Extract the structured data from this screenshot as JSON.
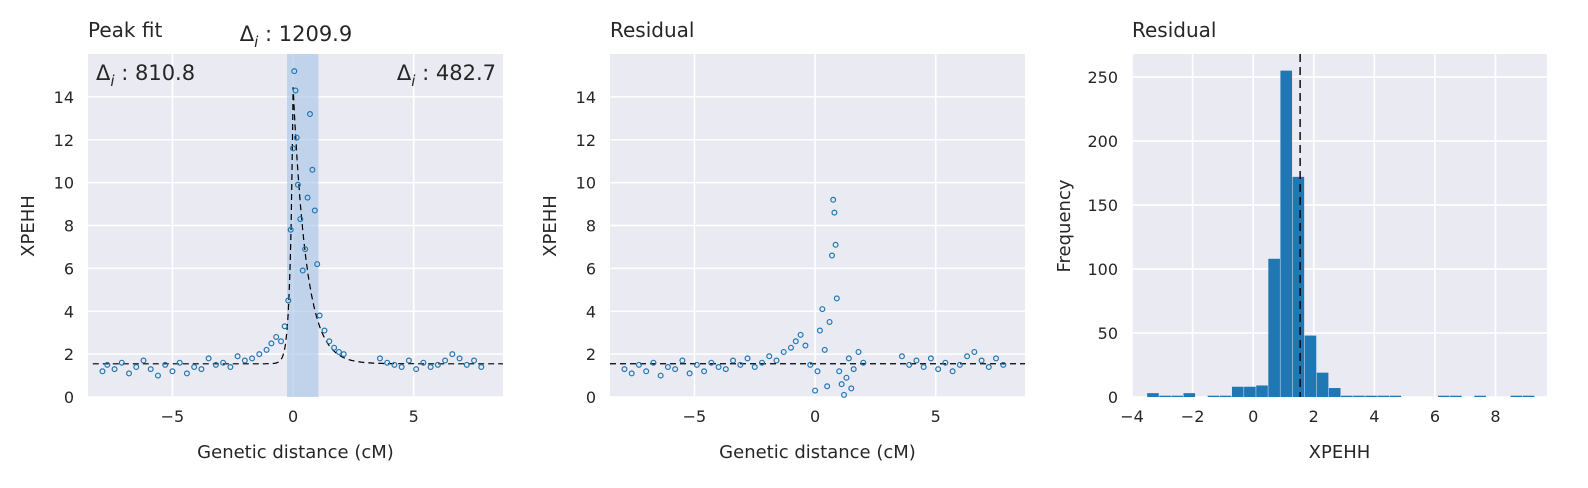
{
  "figure": {
    "colors": {
      "axes_bg": "#eaeaf2",
      "grid": "#ffffff",
      "marker": "#1f77b4",
      "fit_line": "#000000",
      "span": "#a9c6e6",
      "bar": "#1f77b4"
    }
  },
  "chart_data": [
    {
      "type": "scatter",
      "title": "Peak fit",
      "xlabel": "Genetic distance (cM)",
      "ylabel": "XPEHH",
      "xlim": [
        -8.5,
        8.7
      ],
      "ylim": [
        0,
        16
      ],
      "xticks": [
        -5,
        0,
        5
      ],
      "xtick_labels": [
        "−5",
        "0",
        "5"
      ],
      "yticks": [
        0,
        2,
        4,
        6,
        8,
        10,
        12,
        14
      ],
      "ytick_labels": [
        "0",
        "2",
        "4",
        "6",
        "8",
        "10",
        "12",
        "14"
      ],
      "grid": true,
      "fit_line": {
        "style": "dashed",
        "baseline": 1.55,
        "amplitude": 12.9,
        "center": 0.0,
        "rise_scale": 0.12,
        "decay_scale": 0.55
      },
      "span": {
        "x0": -0.25,
        "x1": 1.05
      },
      "annotations": [
        {
          "symbol": "Δ",
          "sub": "i",
          "text": " : 1209.9",
          "anchor": "above-center"
        },
        {
          "symbol": "Δ",
          "sub": "i",
          "text": " : 810.8",
          "anchor": "top-left"
        },
        {
          "symbol": "Δ",
          "sub": "i",
          "text": " : 482.7",
          "anchor": "top-right"
        }
      ],
      "series": [
        {
          "kind": "scatter",
          "x": [
            -7.9,
            -7.7,
            -7.4,
            -7.1,
            -6.8,
            -6.5,
            -6.2,
            -5.9,
            -5.6,
            -5.3,
            -5.0,
            -4.7,
            -4.4,
            -4.1,
            -3.8,
            -3.5,
            -3.2,
            -2.9,
            -2.6,
            -2.3,
            -2.0,
            -1.7,
            -1.4,
            -1.1,
            -0.9,
            -0.7,
            -0.5,
            -0.35,
            -0.2,
            -0.1,
            0.0,
            0.05,
            0.1,
            0.15,
            0.2,
            0.3,
            0.4,
            0.5,
            0.6,
            0.7,
            0.8,
            0.9,
            1.0,
            1.1,
            1.3,
            1.5,
            1.7,
            1.9,
            2.1,
            3.6,
            3.9,
            4.2,
            4.5,
            4.8,
            5.1,
            5.4,
            5.7,
            6.0,
            6.3,
            6.6,
            6.9,
            7.2,
            7.5,
            7.8
          ],
          "y": [
            1.2,
            1.5,
            1.3,
            1.6,
            1.1,
            1.4,
            1.7,
            1.3,
            1.0,
            1.5,
            1.2,
            1.6,
            1.1,
            1.4,
            1.3,
            1.8,
            1.5,
            1.6,
            1.4,
            1.9,
            1.7,
            1.8,
            2.0,
            2.2,
            2.5,
            2.8,
            2.6,
            3.3,
            4.5,
            7.8,
            11.6,
            15.2,
            14.3,
            12.1,
            9.9,
            8.3,
            5.9,
            6.9,
            9.3,
            13.2,
            10.6,
            8.7,
            6.2,
            3.8,
            3.1,
            2.6,
            2.3,
            2.1,
            2.0,
            1.8,
            1.6,
            1.5,
            1.4,
            1.7,
            1.3,
            1.6,
            1.4,
            1.5,
            1.7,
            2.0,
            1.8,
            1.5,
            1.7,
            1.4
          ]
        }
      ]
    },
    {
      "type": "scatter",
      "title": "Residual",
      "xlabel": "Genetic distance (cM)",
      "ylabel": "XPEHH",
      "xlim": [
        -8.5,
        8.7
      ],
      "ylim": [
        0,
        16
      ],
      "xticks": [
        -5,
        0,
        5
      ],
      "xtick_labels": [
        "−5",
        "0",
        "5"
      ],
      "yticks": [
        0,
        2,
        4,
        6,
        8,
        10,
        12,
        14
      ],
      "ytick_labels": [
        "0",
        "2",
        "4",
        "6",
        "8",
        "10",
        "12",
        "14"
      ],
      "grid": true,
      "hline": {
        "y": 1.55,
        "style": "dashed"
      },
      "series": [
        {
          "kind": "scatter",
          "x": [
            -7.9,
            -7.6,
            -7.3,
            -7.0,
            -6.7,
            -6.4,
            -6.1,
            -5.8,
            -5.5,
            -5.2,
            -4.9,
            -4.6,
            -4.3,
            -4.0,
            -3.7,
            -3.4,
            -3.1,
            -2.8,
            -2.5,
            -2.2,
            -1.9,
            -1.6,
            -1.3,
            -1.0,
            -0.8,
            -0.6,
            -0.4,
            -0.2,
            0.0,
            0.1,
            0.2,
            0.3,
            0.4,
            0.5,
            0.6,
            0.7,
            0.75,
            0.8,
            0.85,
            0.9,
            1.0,
            1.1,
            1.2,
            1.3,
            1.4,
            1.5,
            1.6,
            1.8,
            2.0,
            3.6,
            3.9,
            4.2,
            4.5,
            4.8,
            5.1,
            5.4,
            5.7,
            6.0,
            6.3,
            6.6,
            6.9,
            7.2,
            7.5,
            7.8
          ],
          "y": [
            1.3,
            1.1,
            1.5,
            1.2,
            1.6,
            1.0,
            1.4,
            1.3,
            1.7,
            1.1,
            1.5,
            1.2,
            1.6,
            1.4,
            1.3,
            1.7,
            1.5,
            1.8,
            1.4,
            1.6,
            1.9,
            1.7,
            2.1,
            2.3,
            2.6,
            2.9,
            2.4,
            1.5,
            0.3,
            1.2,
            3.1,
            4.1,
            2.2,
            0.5,
            3.5,
            6.6,
            9.2,
            8.6,
            7.1,
            4.6,
            1.2,
            0.6,
            0.1,
            0.9,
            1.8,
            0.4,
            1.3,
            2.1,
            1.6,
            1.9,
            1.5,
            1.7,
            1.4,
            1.8,
            1.3,
            1.6,
            1.2,
            1.5,
            1.9,
            2.1,
            1.7,
            1.4,
            1.8,
            1.5
          ]
        }
      ]
    },
    {
      "type": "bar",
      "title": "Residual",
      "xlabel": "XPEHH",
      "ylabel": "Frequency",
      "xlim": [
        -4,
        9.7
      ],
      "ylim": [
        0,
        268
      ],
      "xticks": [
        -4,
        -2,
        0,
        2,
        4,
        6,
        8
      ],
      "xtick_labels": [
        "−4",
        "−2",
        "0",
        "2",
        "4",
        "6",
        "8"
      ],
      "yticks": [
        0,
        50,
        100,
        150,
        200,
        250
      ],
      "ytick_labels": [
        "0",
        "50",
        "100",
        "150",
        "200",
        "250"
      ],
      "grid": true,
      "vline": {
        "x": 1.55,
        "style": "dashed"
      },
      "bin_edges": [
        -3.5,
        -3.1,
        -2.7,
        -2.3,
        -1.9,
        -1.5,
        -1.1,
        -0.7,
        -0.3,
        0.1,
        0.5,
        0.9,
        1.3,
        1.7,
        2.1,
        2.5,
        2.9,
        3.3,
        3.7,
        4.1,
        4.5,
        4.9,
        5.3,
        5.7,
        6.1,
        6.5,
        6.9,
        7.3,
        7.7,
        8.1,
        8.5,
        8.9,
        9.3
      ],
      "values": [
        3,
        1,
        1,
        3,
        0,
        1,
        1,
        8,
        8,
        9,
        108,
        255,
        172,
        48,
        19,
        7,
        1,
        1,
        1,
        1,
        1,
        0,
        0,
        0,
        1,
        1,
        0,
        1,
        0,
        0,
        1,
        1
      ]
    }
  ]
}
